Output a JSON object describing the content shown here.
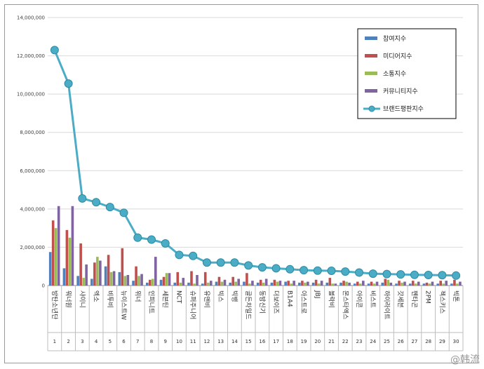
{
  "chart_data": {
    "type": "bar",
    "ylim": [
      0,
      14000000
    ],
    "y_ticks": [
      "0",
      "2,000,000",
      "4,000,000",
      "6,000,000",
      "8,000,000",
      "10,000,000",
      "12,000,000",
      "14,000,000"
    ],
    "categories": [
      "방탄소년단",
      "워너원",
      "샤이니",
      "엑소",
      "비투비",
      "뉴이스트W",
      "위너",
      "인피니트",
      "세븐틴",
      "NCT",
      "슈퍼주니어",
      "유앤비",
      "빅스",
      "빅뱅",
      "골든차일드",
      "동방신기",
      "더보이즈",
      "B1A4",
      "아스트로",
      "JBJ",
      "블락비",
      "몬스타엑스",
      "아이콘",
      "비스트",
      "하이라이트",
      "갓세븐",
      "펜타곤",
      "2PM",
      "젝스키스",
      "빅톤"
    ],
    "ranks": [
      "1",
      "2",
      "3",
      "4",
      "5",
      "6",
      "7",
      "8",
      "9",
      "10",
      "11",
      "12",
      "13",
      "14",
      "15",
      "16",
      "17",
      "18",
      "19",
      "20",
      "21",
      "22",
      "23",
      "24",
      "25",
      "26",
      "27",
      "28",
      "29",
      "30"
    ],
    "grid": true,
    "legend_position": "top-right",
    "series": [
      {
        "name": "참여지수",
        "type": "bar",
        "color": "#4f81bd",
        "values": [
          1750000,
          900000,
          500000,
          350000,
          1000000,
          700000,
          250000,
          150000,
          300000,
          150000,
          150000,
          100000,
          200000,
          150000,
          200000,
          150000,
          150000,
          200000,
          150000,
          150000,
          150000,
          150000,
          100000,
          100000,
          150000,
          100000,
          100000,
          100000,
          100000,
          100000
        ]
      },
      {
        "name": "미디어지수",
        "type": "bar",
        "color": "#c0504d",
        "values": [
          3400000,
          2900000,
          2200000,
          1200000,
          1600000,
          1950000,
          1000000,
          300000,
          450000,
          700000,
          750000,
          700000,
          450000,
          450000,
          650000,
          300000,
          300000,
          250000,
          250000,
          300000,
          400000,
          250000,
          200000,
          200000,
          350000,
          250000,
          250000,
          150000,
          250000,
          300000
        ]
      },
      {
        "name": "소통지수",
        "type": "bar",
        "color": "#9bbb59",
        "values": [
          3000000,
          2500000,
          400000,
          1500000,
          700000,
          500000,
          500000,
          350000,
          650000,
          150000,
          100000,
          150000,
          200000,
          200000,
          100000,
          150000,
          200000,
          100000,
          150000,
          100000,
          100000,
          200000,
          100000,
          100000,
          300000,
          150000,
          100000,
          100000,
          100000,
          100000
        ]
      },
      {
        "name": "커뮤니티지수",
        "type": "bar",
        "color": "#8064a2",
        "values": [
          4150000,
          4150000,
          1100000,
          1300000,
          750000,
          550000,
          600000,
          1500000,
          650000,
          400000,
          550000,
          250000,
          300000,
          350000,
          250000,
          350000,
          250000,
          250000,
          200000,
          250000,
          100000,
          150000,
          250000,
          200000,
          150000,
          200000,
          200000,
          200000,
          250000,
          200000
        ]
      },
      {
        "name": "브랜드평판지수",
        "type": "line",
        "color": "#4bacc6",
        "values": [
          12300000,
          10550000,
          4550000,
          4350000,
          4100000,
          3800000,
          2500000,
          2400000,
          2200000,
          1600000,
          1550000,
          1200000,
          1200000,
          1200000,
          1050000,
          950000,
          900000,
          850000,
          800000,
          780000,
          770000,
          730000,
          680000,
          620000,
          600000,
          580000,
          560000,
          550000,
          540000,
          520000
        ]
      }
    ]
  },
  "watermark": "@韩流"
}
